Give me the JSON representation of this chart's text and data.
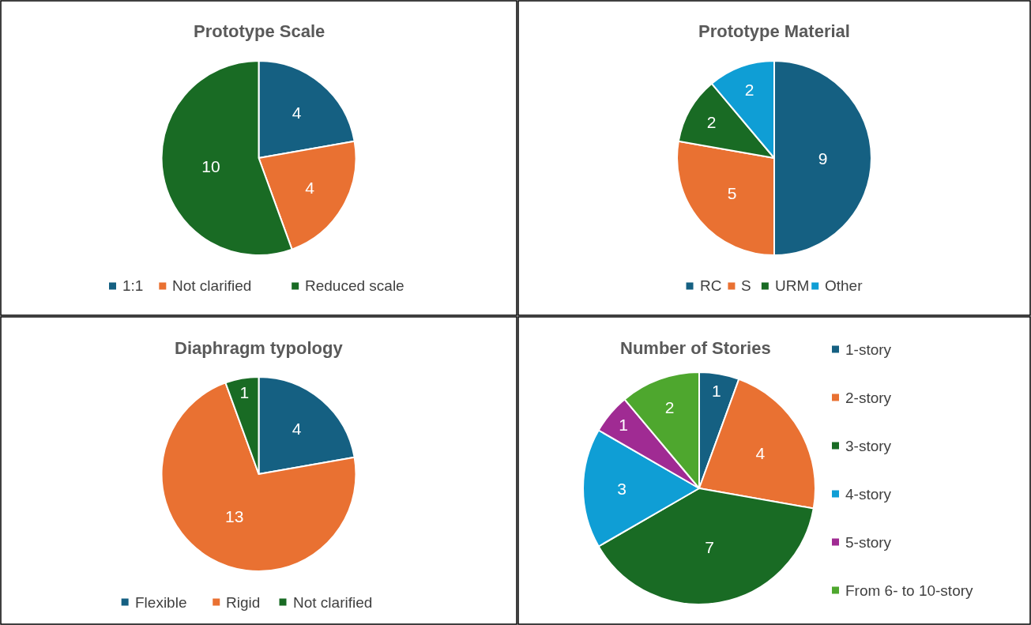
{
  "chart_data": [
    {
      "type": "pie",
      "title": "Prototype Scale",
      "categories": [
        "1:1",
        "Not clarified",
        "Reduced scale"
      ],
      "values": [
        4,
        4,
        10
      ],
      "colors": [
        "#156082",
        "#e97132",
        "#196b24"
      ],
      "data_labels": true,
      "legend": "bottom"
    },
    {
      "type": "pie",
      "title": "Prototype Material",
      "categories": [
        "RC",
        "S",
        "URM",
        "Other"
      ],
      "values": [
        9,
        5,
        2,
        2
      ],
      "colors": [
        "#156082",
        "#e97132",
        "#196b24",
        "#0f9ed5"
      ],
      "data_labels": true,
      "legend": "bottom"
    },
    {
      "type": "pie",
      "title": "Diaphragm typology",
      "categories": [
        "Flexible",
        "Rigid",
        "Not clarified"
      ],
      "values": [
        4,
        13,
        1
      ],
      "colors": [
        "#156082",
        "#e97132",
        "#196b24"
      ],
      "data_labels": true,
      "legend": "bottom"
    },
    {
      "type": "pie",
      "title": "Number of Stories",
      "categories": [
        "1-story",
        "2-story",
        "3-story",
        "4-story",
        "5-story",
        "From 6- to 10-story"
      ],
      "values": [
        1,
        4,
        7,
        3,
        1,
        2
      ],
      "colors": [
        "#156082",
        "#e97132",
        "#196b24",
        "#0f9ed5",
        "#a02b93",
        "#4ea72e"
      ],
      "data_labels": true,
      "legend": "right"
    }
  ]
}
